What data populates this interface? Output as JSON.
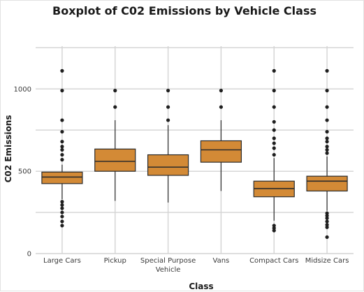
{
  "chart_data": {
    "type": "boxplot",
    "title": "Boxplot of C02 Emissions by Vehicle Class",
    "xlabel": "Class",
    "ylabel": "C02 Emissions",
    "ylim": [
      0,
      1260
    ],
    "yticks": [
      0,
      500,
      1000
    ],
    "grid": true,
    "colors": {
      "box": "#d38a36",
      "outline": "#2b2b2b",
      "grid": "#d3d3d3"
    },
    "categories": [
      {
        "label": [
          "Large Cars"
        ],
        "q1": 425,
        "median": 465,
        "q3": 495,
        "whisker_low": 330,
        "whisker_high": 540,
        "outliers": [
          170,
          195,
          225,
          250,
          275,
          295,
          315,
          570,
          600,
          630,
          650,
          680,
          740,
          810,
          990,
          1110
        ]
      },
      {
        "label": [
          "Pickup"
        ],
        "q1": 500,
        "median": 560,
        "q3": 635,
        "whisker_low": 320,
        "whisker_high": 810,
        "outliers": [
          890,
          990
        ]
      },
      {
        "label": [
          "Special Purpose",
          "Vehicle"
        ],
        "q1": 475,
        "median": 525,
        "q3": 600,
        "whisker_low": 310,
        "whisker_high": 780,
        "outliers": [
          810,
          890,
          990
        ]
      },
      {
        "label": [
          "Vans"
        ],
        "q1": 555,
        "median": 630,
        "q3": 685,
        "whisker_low": 380,
        "whisker_high": 810,
        "outliers": [
          890,
          990
        ]
      },
      {
        "label": [
          "Compact Cars"
        ],
        "q1": 345,
        "median": 395,
        "q3": 440,
        "whisker_low": 200,
        "whisker_high": 580,
        "outliers": [
          140,
          155,
          170,
          600,
          640,
          670,
          700,
          750,
          800,
          890,
          990,
          1110
        ]
      },
      {
        "label": [
          "Midsize Cars"
        ],
        "q1": 380,
        "median": 440,
        "q3": 470,
        "whisker_low": 260,
        "whisker_high": 590,
        "outliers": [
          100,
          160,
          175,
          195,
          215,
          230,
          245,
          610,
          630,
          650,
          680,
          700,
          740,
          810,
          890,
          990,
          1110
        ]
      }
    ]
  }
}
